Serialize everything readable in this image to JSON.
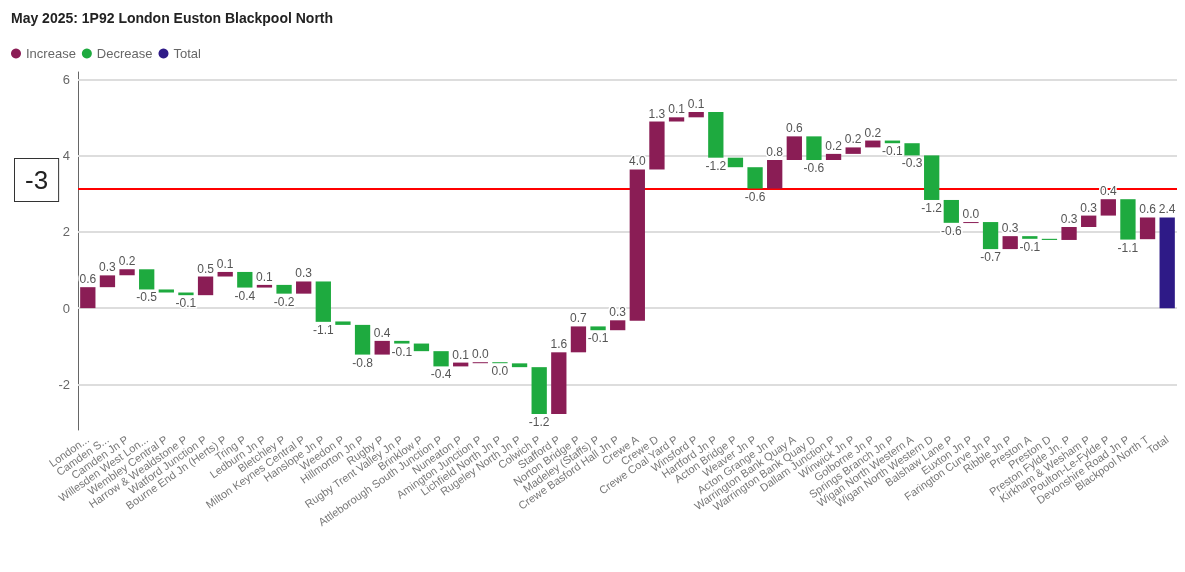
{
  "chart_data": {
    "type": "bar",
    "title": "May 2025: 1P92 London Euston Blackpool North",
    "categories": [
      "London...",
      "Camden S...",
      "Camden Jn P",
      "Willesden West Lon...",
      "Wembley Central P",
      "Harrow & Wealdstone P",
      "Watford Junction P",
      "Bourne End Jn (Herts) P",
      "Tring P",
      "Ledburn Jn P",
      "Bletchley P",
      "Milton Keynes Central P",
      "Hanslope Jn P",
      "Weedon P",
      "Hillmorton Jn P",
      "Rugby P",
      "Rugby Trent Valley Jn P",
      "Brinklow P",
      "Attleborough South Junction P",
      "Nuneaton P",
      "Amington Junction P",
      "Lichfield North Jn P",
      "Rugeley North Jn P",
      "Colwich P",
      "Stafford P",
      "Norton Bridge P",
      "Madeley (Staffs) P",
      "Crewe Basford Hall Jn P",
      "Crewe A",
      "Crewe D",
      "Crewe Coal Yard P",
      "Winsford P",
      "Hartford Jn P",
      "Acton Bridge P",
      "Weaver Jn P",
      "Acton Grange Jn P",
      "Warrington Bank Quay A",
      "Warrington Bank Quay D",
      "Dallam Junction P",
      "Winwick Jn P",
      "Golborne Jn P",
      "Springs Branch Jn P",
      "Wigan North Western A",
      "Wigan North Western D",
      "Balshaw Lane P",
      "Euxton Jn P",
      "Farington Curve Jn P",
      "Ribble Jn P",
      "Preston A",
      "Preston D",
      "Preston Fylde Jn. P",
      "Kirkham & Wesham P",
      "Poulton-Le-Fylde P",
      "Devonshire Road Jn P",
      "Blackpool North T",
      "Total"
    ],
    "series": [
      {
        "name": "Increase",
        "color": "#8a1d55",
        "values": [
          0.55,
          0.31,
          0.16,
          null,
          null,
          null,
          0.49,
          0.12,
          null,
          0.07,
          null,
          0.32,
          null,
          null,
          null,
          0.36,
          null,
          null,
          null,
          0.1,
          0.01,
          null,
          null,
          null,
          1.62,
          0.68,
          null,
          0.26,
          3.97,
          1.26,
          0.11,
          0.14,
          null,
          null,
          null,
          0.75,
          0.62,
          null,
          0.16,
          0.17,
          0.18,
          null,
          null,
          null,
          null,
          0.02,
          null,
          0.34,
          null,
          null,
          0.34,
          0.3,
          0.43,
          null,
          0.57,
          null
        ],
        "base": [
          0,
          0.55,
          0.86,
          null,
          null,
          null,
          0.34,
          0.83,
          null,
          0.54,
          null,
          0.38,
          null,
          null,
          null,
          -1.22,
          null,
          null,
          null,
          -1.53,
          -1.43,
          null,
          null,
          null,
          -2.78,
          -1.16,
          null,
          -0.58,
          -0.33,
          3.64,
          4.9,
          5.01,
          null,
          null,
          null,
          3.14,
          3.89,
          null,
          3.89,
          4.05,
          4.22,
          null,
          null,
          null,
          null,
          2.24,
          null,
          1.55,
          null,
          null,
          1.79,
          2.13,
          2.43,
          null,
          1.81,
          null
        ],
        "value_labels": [
          "0.6",
          "0.3",
          "0.2",
          null,
          null,
          null,
          "0.5",
          "0.1",
          null,
          "0.1",
          null,
          "0.3",
          null,
          null,
          null,
          "0.4",
          null,
          null,
          null,
          "0.1",
          "0.0",
          null,
          null,
          null,
          "1.6",
          "0.7",
          null,
          "0.3",
          "4.0",
          "1.3",
          "0.1",
          "0.1",
          null,
          null,
          null,
          "0.8",
          "0.6",
          null,
          "0.2",
          "0.2",
          "0.2",
          null,
          null,
          null,
          null,
          "0.0",
          null,
          "0.3",
          null,
          null,
          "0.3",
          "0.3",
          "0.4",
          null,
          "0.6",
          null
        ]
      },
      {
        "name": "Decrease",
        "color": "#1eaa3f",
        "values": [
          null,
          null,
          null,
          -0.53,
          -0.08,
          -0.07,
          null,
          null,
          -0.41,
          null,
          -0.23,
          null,
          -1.06,
          -0.09,
          -0.78,
          null,
          -0.07,
          -0.2,
          -0.4,
          null,
          null,
          -0.02,
          -0.1,
          -1.23,
          null,
          null,
          -0.1,
          null,
          null,
          null,
          null,
          null,
          -1.2,
          -0.25,
          -0.56,
          null,
          null,
          -0.62,
          null,
          null,
          null,
          -0.07,
          -0.32,
          -1.17,
          -0.6,
          null,
          -0.71,
          null,
          -0.07,
          -0.03,
          null,
          null,
          null,
          -1.06,
          null,
          null
        ],
        "base": [
          null,
          null,
          null,
          1.02,
          0.49,
          0.41,
          null,
          null,
          0.95,
          null,
          0.61,
          null,
          0.7,
          -0.35,
          -0.44,
          null,
          -0.86,
          -0.93,
          -1.13,
          null,
          null,
          -1.42,
          -1.45,
          -1.55,
          null,
          null,
          -0.48,
          null,
          null,
          null,
          null,
          null,
          5.15,
          3.95,
          3.7,
          null,
          null,
          4.51,
          null,
          null,
          null,
          4.4,
          4.33,
          4.01,
          2.84,
          null,
          2.26,
          null,
          1.89,
          1.82,
          null,
          null,
          null,
          2.86,
          null,
          null
        ],
        "value_labels": [
          null,
          null,
          null,
          "-0.5",
          null,
          "-0.1",
          null,
          null,
          "-0.4",
          null,
          "-0.2",
          null,
          "-1.1",
          null,
          "-0.8",
          null,
          "-0.1",
          null,
          "-0.4",
          null,
          null,
          "0.0",
          null,
          "-1.2",
          null,
          null,
          "-0.1",
          null,
          null,
          null,
          null,
          null,
          "-1.2",
          null,
          "-0.6",
          null,
          null,
          "-0.6",
          null,
          null,
          null,
          "-0.1",
          "-0.3",
          "-1.2",
          "-0.6",
          null,
          "-0.7",
          null,
          "-0.1",
          null,
          null,
          null,
          null,
          "-1.1",
          null,
          null
        ]
      },
      {
        "name": "Total",
        "color": "#2e1a87",
        "values": [
          null,
          null,
          null,
          null,
          null,
          null,
          null,
          null,
          null,
          null,
          null,
          null,
          null,
          null,
          null,
          null,
          null,
          null,
          null,
          null,
          null,
          null,
          null,
          null,
          null,
          null,
          null,
          null,
          null,
          null,
          null,
          null,
          null,
          null,
          null,
          null,
          null,
          null,
          null,
          null,
          null,
          null,
          null,
          null,
          null,
          null,
          null,
          null,
          null,
          null,
          null,
          null,
          null,
          null,
          null,
          2.38
        ],
        "value_labels": [
          null,
          null,
          null,
          null,
          null,
          null,
          null,
          null,
          null,
          null,
          null,
          null,
          null,
          null,
          null,
          null,
          null,
          null,
          null,
          null,
          null,
          null,
          null,
          null,
          null,
          null,
          null,
          null,
          null,
          null,
          null,
          null,
          null,
          null,
          null,
          null,
          null,
          null,
          null,
          null,
          null,
          null,
          null,
          null,
          null,
          null,
          null,
          null,
          null,
          null,
          null,
          null,
          null,
          null,
          null,
          "2.4"
        ]
      }
    ],
    "ylim": [
      -3.2,
      6.2
    ],
    "yticks": [
      -2,
      0,
      2,
      4,
      6
    ],
    "grid": "y",
    "legend": "top left",
    "ref_lines": [
      {
        "axis": "y",
        "value": 3.14,
        "color": "#ff0000"
      }
    ],
    "annotations": [
      "-3"
    ]
  }
}
